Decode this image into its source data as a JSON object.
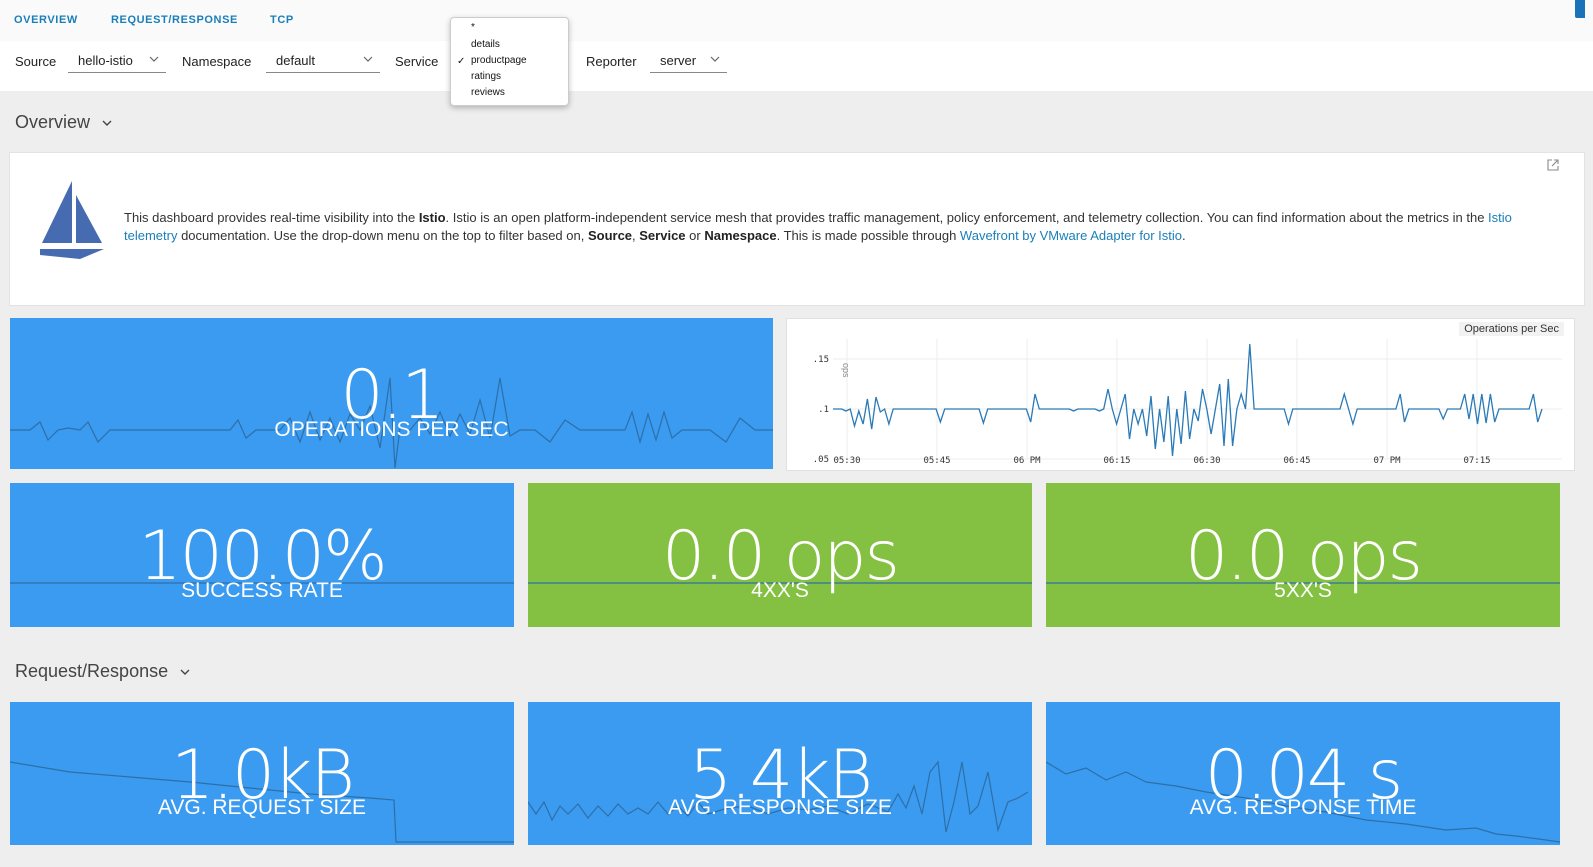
{
  "nav": {
    "tabs": [
      "OVERVIEW",
      "REQUEST/RESPONSE",
      "TCP"
    ]
  },
  "filters": {
    "source": {
      "label": "Source",
      "value": "hello-istio"
    },
    "namespace": {
      "label": "Namespace",
      "value": "default"
    },
    "service": {
      "label": "Service",
      "value": "productpage"
    },
    "reporter": {
      "label": "Reporter",
      "value": "server"
    }
  },
  "service_dropdown": {
    "options": [
      "*",
      "details",
      "productpage",
      "ratings",
      "reviews"
    ],
    "selected": "productpage"
  },
  "sections": {
    "overview": "Overview",
    "request_response": "Request/Response"
  },
  "info": {
    "t1": "This dashboard provides real-time visibility into the ",
    "b1": "Istio",
    "t2": ". Istio is an open platform-independent service mesh that provides traffic management, policy enforcement, and telemetry collection. You can find information about the metrics in the ",
    "link1": "Istio telemetry",
    "t3": " documentation. Use the drop-down menu on the top to filter based on, ",
    "b2": "Source",
    "t4": ", ",
    "b3": "Service",
    "t5": " or ",
    "b4": "Namespace",
    "t6": ". This is made possible through ",
    "link2": "Wavefront by VMware Adapter for Istio",
    "t7": "."
  },
  "tiles": {
    "ops": {
      "value": "0.1",
      "label": "OPERATIONS PER SEC"
    },
    "success": {
      "value": "100.0%",
      "label": "SUCCESS RATE"
    },
    "e4xx": {
      "value": "0.0 ops",
      "label": "4XX'S"
    },
    "e5xx": {
      "value": "0.0 ops",
      "label": "5XX'S"
    },
    "req_size": {
      "value": "1.0kB",
      "label": "AVG. REQUEST SIZE"
    },
    "resp_size": {
      "value": "5.4kB",
      "label": "AVG. RESPONSE SIZE"
    },
    "resp_time": {
      "value": "0.04 s",
      "label": "AVG. RESPONSE TIME"
    }
  },
  "colors": {
    "tile_blue": "#3a9bf0",
    "tile_green": "#84c041",
    "link": "#1a7fb8",
    "line": "#2a7ab8"
  },
  "icons": [
    "chevron-down-icon",
    "external-link-icon",
    "istio-sail-logo",
    "checkmark-icon"
  ],
  "chart_data": {
    "type": "line",
    "title": "Operations per Sec",
    "ylabel": "ops",
    "xlabel": "",
    "x_ticks": [
      "05:30",
      "05:45",
      "06 PM",
      "06:15",
      "06:30",
      "06:45",
      "07 PM",
      "07:15"
    ],
    "y_ticks": [
      ".15",
      ".1",
      ".05"
    ],
    "ylim": [
      0.05,
      0.17
    ],
    "grid": true,
    "legend": "none",
    "series": [
      {
        "values": [
          0.1,
          0.1,
          0.1,
          0.098,
          0.1,
          0.083,
          0.098,
          0.085,
          0.11,
          0.08,
          0.112,
          0.097,
          0.1,
          0.085,
          0.1,
          0.1,
          0.1,
          0.1,
          0.1,
          0.1,
          0.1,
          0.1,
          0.1,
          0.1,
          0.1,
          0.087,
          0.1,
          0.1,
          0.1,
          0.1,
          0.1,
          0.1,
          0.1,
          0.1,
          0.1,
          0.086,
          0.1,
          0.1,
          0.1,
          0.1,
          0.1,
          0.1,
          0.1,
          0.1,
          0.1,
          0.1,
          0.087,
          0.115,
          0.1,
          0.1,
          0.1,
          0.1,
          0.1,
          0.1,
          0.1,
          0.1,
          0.098,
          0.1,
          0.1,
          0.1,
          0.1,
          0.1,
          0.098,
          0.1,
          0.12,
          0.1,
          0.085,
          0.1,
          0.115,
          0.07,
          0.1,
          0.085,
          0.1,
          0.073,
          0.113,
          0.06,
          0.1,
          0.067,
          0.113,
          0.053,
          0.1,
          0.065,
          0.118,
          0.07,
          0.1,
          0.088,
          0.12,
          0.1,
          0.075,
          0.1,
          0.125,
          0.063,
          0.13,
          0.063,
          0.1,
          0.115,
          0.1,
          0.165,
          0.1,
          0.1,
          0.1,
          0.1,
          0.1,
          0.1,
          0.1,
          0.1,
          0.085,
          0.1,
          0.1,
          0.1,
          0.1,
          0.1,
          0.1,
          0.1,
          0.1,
          0.1,
          0.1,
          0.1,
          0.1,
          0.115,
          0.1,
          0.085,
          0.1,
          0.1,
          0.1,
          0.1,
          0.1,
          0.1,
          0.1,
          0.1,
          0.1,
          0.1,
          0.115,
          0.087,
          0.1,
          0.1,
          0.1,
          0.1,
          0.1,
          0.1,
          0.1,
          0.1,
          0.09,
          0.1,
          0.1,
          0.1,
          0.1,
          0.115,
          0.09,
          0.115,
          0.085,
          0.115,
          0.086,
          0.115,
          0.087,
          0.1,
          0.1,
          0.1,
          0.1,
          0.1,
          0.1,
          0.1,
          0.1,
          0.115,
          0.087,
          0.1
        ]
      }
    ]
  }
}
